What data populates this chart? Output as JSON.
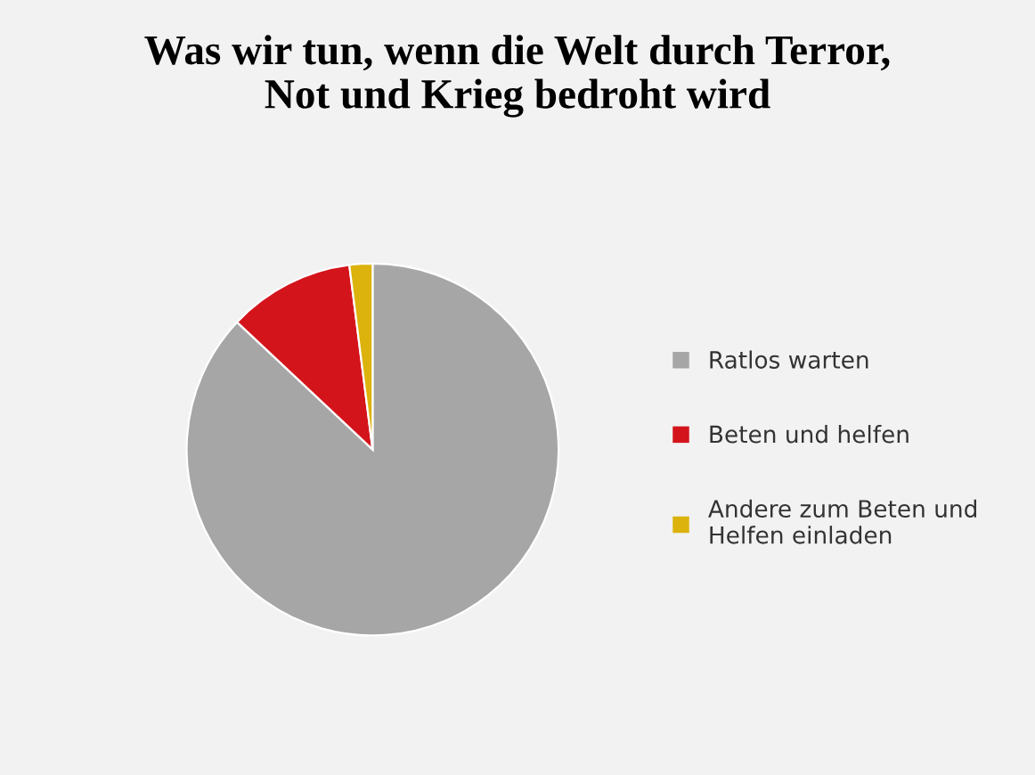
{
  "chart_data": {
    "type": "pie",
    "title": "Was wir tun, wenn die Welt durch Terror,\nNot und Krieg bedroht wird",
    "categories": [
      "Ratlos warten",
      "Beten und helfen",
      "Andere zum Beten und\nHelfen einladen"
    ],
    "values": [
      87,
      11,
      2
    ],
    "colors": [
      "#a6a6a6",
      "#d4141b",
      "#dcb20c"
    ],
    "legend": "right"
  }
}
